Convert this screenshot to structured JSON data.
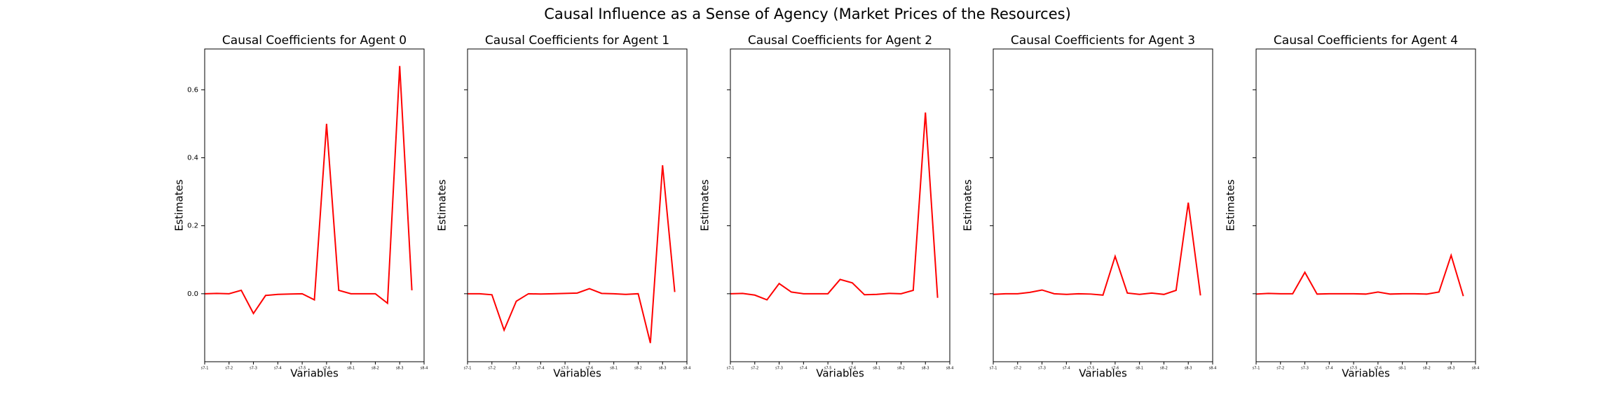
{
  "title": "Causal Influence as a Sense of Agency (Market Prices of the Resources)",
  "chart_data": [
    {
      "type": "line",
      "title": "Causal Coefficients for Agent 0",
      "xlabel": "Variables",
      "ylabel": "Estimates",
      "x": [
        0,
        1,
        2,
        3,
        4,
        5,
        6,
        7,
        8,
        9,
        10,
        11,
        12,
        13,
        14,
        15,
        16,
        17
      ],
      "series": [
        {
          "color": "#ff0000",
          "values": [
            0,
            0.001,
            0,
            0.01,
            -0.058,
            -0.005,
            -0.002,
            -0.001,
            0,
            -0.018,
            0.5,
            0.01,
            0,
            0,
            0,
            -0.028,
            0.67,
            0.01
          ]
        }
      ],
      "xlim": [
        0,
        18
      ],
      "xticks": [
        {
          "value": 0,
          "label": "s7-1"
        },
        {
          "value": 2,
          "label": "s7-2"
        },
        {
          "value": 4,
          "label": "s7-3"
        },
        {
          "value": 6,
          "label": "s7-4"
        },
        {
          "value": 8,
          "label": "s7-5"
        },
        {
          "value": 10,
          "label": "s7-6"
        },
        {
          "value": 12,
          "label": "s8-1"
        },
        {
          "value": 14,
          "label": "s8-2"
        },
        {
          "value": 16,
          "label": "s8-3"
        },
        {
          "value": 18,
          "label": "s8-4"
        }
      ],
      "ylim": [
        -0.2,
        0.72
      ],
      "yticks": [
        {
          "value": 0,
          "label": "0.0"
        },
        {
          "value": 0.2,
          "label": "0.2"
        },
        {
          "value": 0.4,
          "label": "0.4"
        },
        {
          "value": 0.6,
          "label": "0.6"
        }
      ]
    },
    {
      "type": "line",
      "title": "Causal Coefficients for Agent 1",
      "xlabel": "Variables",
      "ylabel": "Estimates",
      "x": [
        0,
        1,
        2,
        3,
        4,
        5,
        6,
        7,
        8,
        9,
        10,
        11,
        12,
        13,
        14,
        15,
        16,
        17
      ],
      "series": [
        {
          "color": "#ff0000",
          "values": [
            0,
            0,
            -0.003,
            -0.107,
            -0.022,
            0,
            -0.001,
            0,
            0.001,
            0.002,
            0.015,
            0.001,
            0,
            -0.002,
            0,
            -0.145,
            0.378,
            0.005
          ]
        }
      ],
      "xlim": [
        0,
        18
      ],
      "xticks": [
        {
          "value": 0,
          "label": "s7-1"
        },
        {
          "value": 2,
          "label": "s7-2"
        },
        {
          "value": 4,
          "label": "s7-3"
        },
        {
          "value": 6,
          "label": "s7-4"
        },
        {
          "value": 8,
          "label": "s7-5"
        },
        {
          "value": 10,
          "label": "s7-6"
        },
        {
          "value": 12,
          "label": "s8-1"
        },
        {
          "value": 14,
          "label": "s8-2"
        },
        {
          "value": 16,
          "label": "s8-3"
        },
        {
          "value": 18,
          "label": "s8-4"
        }
      ],
      "ylim": [
        -0.2,
        0.72
      ],
      "yticks": [
        0,
        0.2,
        0.4,
        0.6
      ]
    },
    {
      "type": "line",
      "title": "Causal Coefficients for Agent 2",
      "xlabel": "Variables",
      "ylabel": "Estimates",
      "x": [
        0,
        1,
        2,
        3,
        4,
        5,
        6,
        7,
        8,
        9,
        10,
        11,
        12,
        13,
        14,
        15,
        16,
        17
      ],
      "series": [
        {
          "color": "#ff0000",
          "values": [
            0,
            0.001,
            -0.004,
            -0.018,
            0.03,
            0.005,
            0,
            0,
            0,
            0.042,
            0.032,
            -0.003,
            -0.002,
            0.001,
            0,
            0.01,
            0.533,
            -0.012
          ]
        }
      ],
      "xlim": [
        0,
        18
      ],
      "xticks": [
        {
          "value": 0,
          "label": "s7-1"
        },
        {
          "value": 2,
          "label": "s7-2"
        },
        {
          "value": 4,
          "label": "s7-3"
        },
        {
          "value": 6,
          "label": "s7-4"
        },
        {
          "value": 8,
          "label": "s7-5"
        },
        {
          "value": 10,
          "label": "s7-6"
        },
        {
          "value": 12,
          "label": "s8-1"
        },
        {
          "value": 14,
          "label": "s8-2"
        },
        {
          "value": 16,
          "label": "s8-3"
        },
        {
          "value": 18,
          "label": "s8-4"
        }
      ],
      "ylim": [
        -0.2,
        0.72
      ],
      "yticks": [
        0,
        0.2,
        0.4,
        0.6
      ]
    },
    {
      "type": "line",
      "title": "Causal Coefficients for Agent 3",
      "xlabel": "Variables",
      "ylabel": "Estimates",
      "x": [
        0,
        1,
        2,
        3,
        4,
        5,
        6,
        7,
        8,
        9,
        10,
        11,
        12,
        13,
        14,
        15,
        16,
        17
      ],
      "series": [
        {
          "color": "#ff0000",
          "values": [
            -0.002,
            0,
            0,
            0.004,
            0.011,
            0,
            -0.002,
            0,
            -0.001,
            -0.004,
            0.11,
            0.002,
            -0.002,
            0.002,
            -0.002,
            0.01,
            0.268,
            -0.005
          ]
        }
      ],
      "xlim": [
        0,
        18
      ],
      "xticks": [
        {
          "value": 0,
          "label": "s7-1"
        },
        {
          "value": 2,
          "label": "s7-2"
        },
        {
          "value": 4,
          "label": "s7-3"
        },
        {
          "value": 6,
          "label": "s7-4"
        },
        {
          "value": 8,
          "label": "s7-5"
        },
        {
          "value": 10,
          "label": "s7-6"
        },
        {
          "value": 12,
          "label": "s8-1"
        },
        {
          "value": 14,
          "label": "s8-2"
        },
        {
          "value": 16,
          "label": "s8-3"
        },
        {
          "value": 18,
          "label": "s8-4"
        }
      ],
      "ylim": [
        -0.2,
        0.72
      ],
      "yticks": [
        0,
        0.2,
        0.4,
        0.6
      ]
    },
    {
      "type": "line",
      "title": "Causal Coefficients for Agent 4",
      "xlabel": "Variables",
      "ylabel": "Estimates",
      "x": [
        0,
        1,
        2,
        3,
        4,
        5,
        6,
        7,
        8,
        9,
        10,
        11,
        12,
        13,
        14,
        15,
        16,
        17
      ],
      "series": [
        {
          "color": "#ff0000",
          "values": [
            -0.001,
            0.001,
            0,
            0,
            0.063,
            -0.001,
            0,
            0,
            0,
            -0.001,
            0.005,
            -0.001,
            0,
            0,
            -0.001,
            0.005,
            0.113,
            -0.007
          ]
        }
      ],
      "xlim": [
        0,
        18
      ],
      "xticks": [
        {
          "value": 0,
          "label": "s7-1"
        },
        {
          "value": 2,
          "label": "s7-2"
        },
        {
          "value": 4,
          "label": "s7-3"
        },
        {
          "value": 6,
          "label": "s7-4"
        },
        {
          "value": 8,
          "label": "s7-5"
        },
        {
          "value": 10,
          "label": "s7-6"
        },
        {
          "value": 12,
          "label": "s8-1"
        },
        {
          "value": 14,
          "label": "s8-2"
        },
        {
          "value": 16,
          "label": "s8-3"
        },
        {
          "value": 18,
          "label": "s8-4"
        }
      ],
      "ylim": [
        -0.2,
        0.72
      ],
      "yticks": [
        0,
        0.2,
        0.4,
        0.6
      ]
    }
  ]
}
